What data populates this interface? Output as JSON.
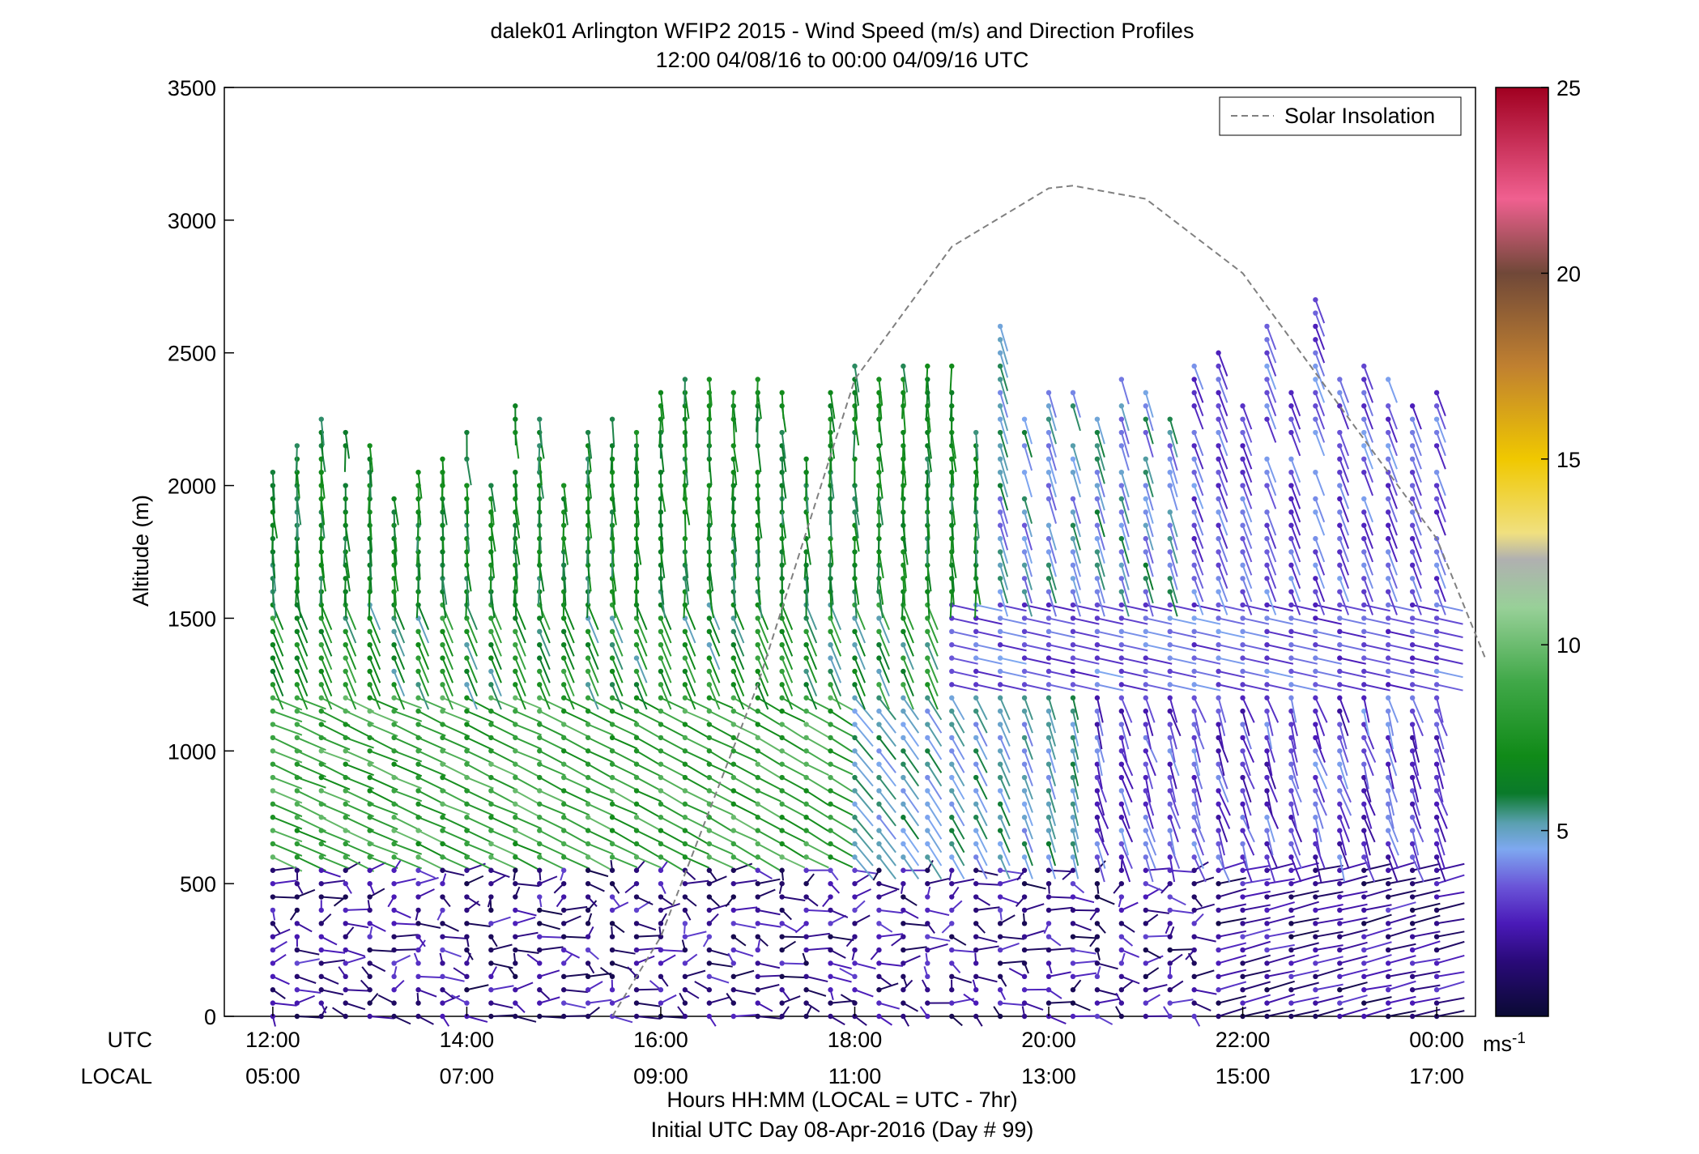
{
  "chart_data": {
    "type": "wind-barb-profile",
    "title": "dalek01 Arlington WFIP2 2015 - Wind Speed (m/s) and Direction Profiles",
    "subtitle": "12:00 04/08/16 to 00:00 04/09/16  UTC",
    "ylabel": "Altitude (m)",
    "xlabel": "Hours HH:MM  (LOCAL = UTC - 7hr)",
    "footnote": "Initial UTC Day 08-Apr-2016 (Day # 99)",
    "xrow_labels": {
      "utc": "UTC",
      "local": "LOCAL"
    },
    "xlim_hours_utc": [
      11.5,
      24.4
    ],
    "ylim": [
      0,
      3500
    ],
    "yticks": [
      0,
      500,
      1000,
      1500,
      2000,
      2500,
      3000,
      3500
    ],
    "xticks_utc": [
      "12:00",
      "14:00",
      "16:00",
      "18:00",
      "20:00",
      "22:00",
      "00:00"
    ],
    "xticks_local": [
      "05:00",
      "07:00",
      "09:00",
      "11:00",
      "13:00",
      "15:00",
      "17:00"
    ],
    "xtick_hours_utc": [
      12,
      14,
      16,
      18,
      20,
      22,
      24
    ],
    "profile_interval_minutes": 15,
    "profile_start_hour_utc": 12.0,
    "profile_end_hour_utc": 24.0,
    "range_gate_m": 50,
    "legend": {
      "label": "Solar Insolation",
      "line_style": "dashed",
      "color": "#808080",
      "position": "top-right"
    },
    "solar_insolation": {
      "x_hours_utc": [
        15.5,
        16.0,
        17.0,
        18.0,
        19.0,
        20.0,
        20.25,
        21.0,
        22.0,
        23.0,
        24.0,
        24.5
      ],
      "y_plot_units": [
        0,
        300,
        1250,
        2400,
        2900,
        3120,
        3130,
        3080,
        2800,
        2300,
        1800,
        1350
      ]
    },
    "colorbar": {
      "label": "ms-1",
      "range": [
        0,
        25
      ],
      "ticks": [
        5,
        10,
        15,
        20,
        25
      ],
      "colormap": [
        {
          "v": 0.0,
          "c": "#0a0a33"
        },
        {
          "v": 1.5,
          "c": "#2a0a7a"
        },
        {
          "v": 2.5,
          "c": "#4a1ab8"
        },
        {
          "v": 3.5,
          "c": "#6a55d8"
        },
        {
          "v": 4.5,
          "c": "#7ea8f0"
        },
        {
          "v": 5.2,
          "c": "#5aa0b0"
        },
        {
          "v": 6.0,
          "c": "#0a7a2a"
        },
        {
          "v": 7.0,
          "c": "#108a18"
        },
        {
          "v": 9.0,
          "c": "#40a848"
        },
        {
          "v": 11.0,
          "c": "#98d098"
        },
        {
          "v": 12.3,
          "c": "#b0b0b0"
        },
        {
          "v": 13.0,
          "c": "#f0e080"
        },
        {
          "v": 15.0,
          "c": "#f0c800"
        },
        {
          "v": 17.5,
          "c": "#c08030"
        },
        {
          "v": 20.0,
          "c": "#704838"
        },
        {
          "v": 22.0,
          "c": "#f06090"
        },
        {
          "v": 25.0,
          "c": "#a00020"
        }
      ]
    },
    "speed_regimes_m_s": {
      "surface_layer_0_600m": 1.5,
      "lower_flow_600_1200m": 9.0,
      "mid_flow_1200_2500m": 6.5,
      "afternoon_upper_flow": 3.0
    }
  }
}
